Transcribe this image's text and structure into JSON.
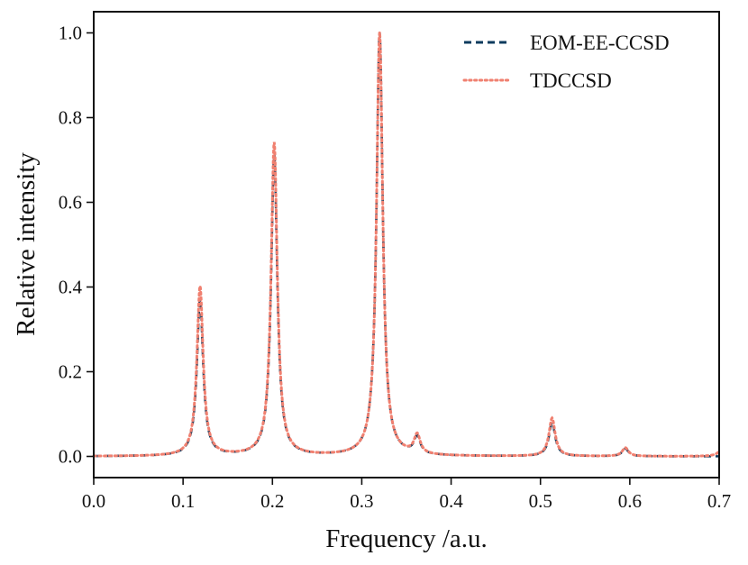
{
  "chart_data": {
    "type": "line",
    "title": "",
    "xlabel": "Frequency /a.u.",
    "ylabel": "Relative intensity",
    "xlim": [
      0.0,
      0.7
    ],
    "ylim": [
      -0.05,
      1.05
    ],
    "x_ticks": [
      "0.0",
      "0.1",
      "0.2",
      "0.3",
      "0.4",
      "0.5",
      "0.6",
      "0.7"
    ],
    "y_ticks": [
      "0.0",
      "0.2",
      "0.4",
      "0.6",
      "0.8",
      "1.0"
    ],
    "grid": false,
    "legend_position": "top-right",
    "series": [
      {
        "name": "EOM-EE-CCSD",
        "color": "#0d3b5e",
        "line_style": "dashed",
        "peaks": [
          {
            "x": 0.119,
            "y": 0.37
          },
          {
            "x": 0.202,
            "y": 0.71
          },
          {
            "x": 0.32,
            "y": 1.0
          },
          {
            "x": 0.362,
            "y": 0.04
          },
          {
            "x": 0.513,
            "y": 0.08
          },
          {
            "x": 0.595,
            "y": 0.018
          }
        ]
      },
      {
        "name": "TDCCSD",
        "color": "#f08070",
        "line_style": "dotted",
        "peaks": [
          {
            "x": 0.119,
            "y": 0.4
          },
          {
            "x": 0.202,
            "y": 0.74
          },
          {
            "x": 0.32,
            "y": 1.0
          },
          {
            "x": 0.362,
            "y": 0.045
          },
          {
            "x": 0.513,
            "y": 0.09
          },
          {
            "x": 0.595,
            "y": 0.02
          },
          {
            "x": 0.705,
            "y": 0.03
          }
        ]
      }
    ]
  }
}
